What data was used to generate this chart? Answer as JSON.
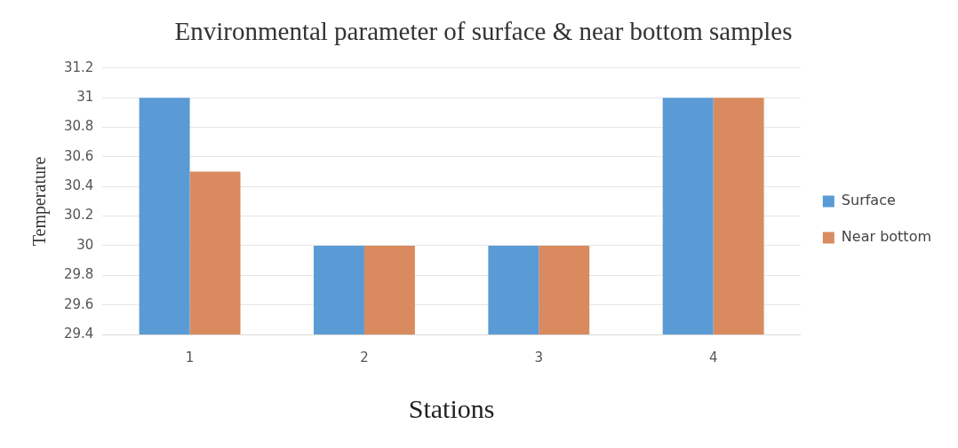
{
  "chart_data": {
    "type": "bar",
    "title": "Environmental parameter of surface & near bottom samples",
    "xlabel": "Stations",
    "ylabel": "Temperature",
    "categories": [
      "1",
      "2",
      "3",
      "4"
    ],
    "series": [
      {
        "name": "Surface",
        "color": "#5b9bd5",
        "values": [
          31,
          30,
          30,
          31
        ]
      },
      {
        "name": "Near bottom",
        "color": "#d98b5f",
        "values": [
          30.5,
          30,
          30,
          31
        ]
      }
    ],
    "ylim": [
      29.4,
      31.2
    ],
    "yticks": [
      29.4,
      29.6,
      29.8,
      30,
      30.2,
      30.4,
      30.6,
      30.8,
      31,
      31.2
    ],
    "grid": "y",
    "legend": "right"
  }
}
